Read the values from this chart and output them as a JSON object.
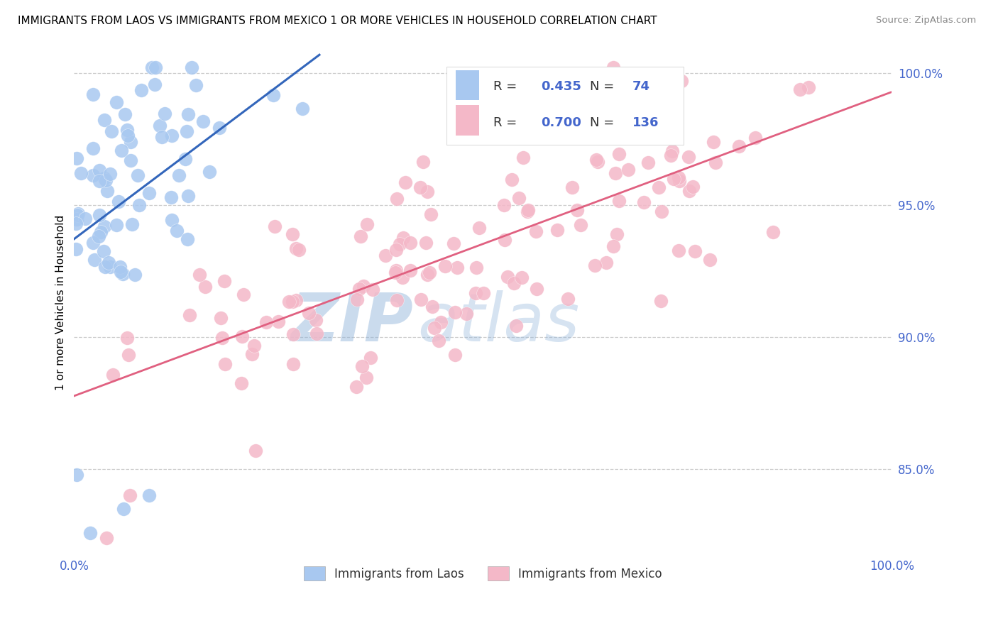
{
  "title": "IMMIGRANTS FROM LAOS VS IMMIGRANTS FROM MEXICO 1 OR MORE VEHICLES IN HOUSEHOLD CORRELATION CHART",
  "source": "Source: ZipAtlas.com",
  "ylabel": "1 or more Vehicles in Household",
  "legend_r_laos": "0.435",
  "legend_n_laos": "74",
  "legend_r_mexico": "0.700",
  "legend_n_mexico": "136",
  "legend_label_laos": "Immigrants from Laos",
  "legend_label_mexico": "Immigrants from Mexico",
  "color_laos": "#a8c8f0",
  "color_mexico": "#f4b8c8",
  "color_laos_line": "#3366bb",
  "color_mexico_line": "#e06080",
  "color_blue_text": "#4466cc",
  "ylim_low": 0.818,
  "ylim_high": 1.008,
  "yticks": [
    0.85,
    0.9,
    0.95,
    1.0
  ],
  "ytick_labels": [
    "85.0%",
    "90.0%",
    "95.0%",
    "100.0%"
  ]
}
